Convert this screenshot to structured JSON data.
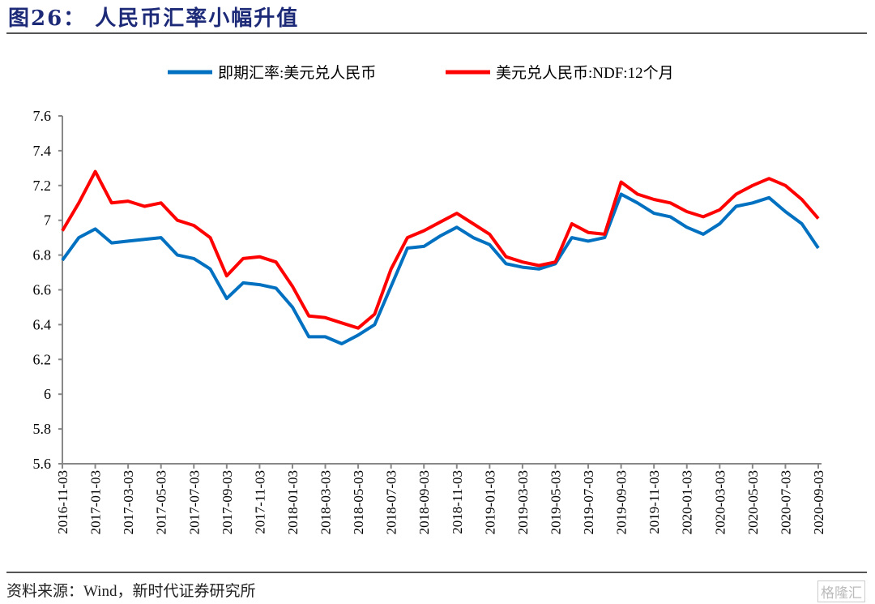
{
  "header": {
    "title": "图26：  人民币汇率小幅升值"
  },
  "footer": {
    "source": "资料来源：Wind，新时代证券研究所",
    "watermark": "格隆汇"
  },
  "chart_data": {
    "type": "line",
    "title": "图26：  人民币汇率小幅升值",
    "xlabel": "",
    "ylabel": "",
    "ylim": [
      5.6,
      7.6
    ],
    "yticks": [
      "7.6",
      "7.4",
      "7.2",
      "7",
      "6.8",
      "6.6",
      "6.4",
      "6.2",
      "6",
      "5.8",
      "5.6"
    ],
    "ytick_values": [
      7.6,
      7.4,
      7.2,
      7.0,
      6.8,
      6.6,
      6.4,
      6.2,
      6.0,
      5.8,
      5.6
    ],
    "xticks": [
      "2016-11-03",
      "2017-01-03",
      "2017-03-03",
      "2017-05-03",
      "2017-07-03",
      "2017-09-03",
      "2017-11-03",
      "2018-01-03",
      "2018-03-03",
      "2018-05-03",
      "2018-07-03",
      "2018-09-03",
      "2018-11-03",
      "2019-01-03",
      "2019-03-03",
      "2019-05-03",
      "2019-07-03",
      "2019-09-03",
      "2019-11-03",
      "2020-01-03",
      "2020-03-03",
      "2020-05-03",
      "2020-07-03",
      "2020-09-03"
    ],
    "grid": false,
    "legend_position": "top-center",
    "x": [
      "2016-11",
      "2016-12",
      "2017-01",
      "2017-02",
      "2017-03",
      "2017-04",
      "2017-05",
      "2017-06",
      "2017-07",
      "2017-08",
      "2017-09",
      "2017-10",
      "2017-11",
      "2017-12",
      "2018-01",
      "2018-02",
      "2018-03",
      "2018-04",
      "2018-05",
      "2018-06",
      "2018-07",
      "2018-08",
      "2018-09",
      "2018-10",
      "2018-11",
      "2018-12",
      "2019-01",
      "2019-02",
      "2019-03",
      "2019-04",
      "2019-05",
      "2019-06",
      "2019-07",
      "2019-08",
      "2019-09",
      "2019-10",
      "2019-11",
      "2019-12",
      "2020-01",
      "2020-02",
      "2020-03",
      "2020-04",
      "2020-05",
      "2020-06",
      "2020-07",
      "2020-08",
      "2020-09"
    ],
    "series": [
      {
        "name": "即期汇率:美元兑人民币",
        "color": "#0070c0",
        "values": [
          6.77,
          6.9,
          6.95,
          6.87,
          6.88,
          6.89,
          6.9,
          6.8,
          6.78,
          6.72,
          6.55,
          6.64,
          6.63,
          6.61,
          6.5,
          6.33,
          6.33,
          6.29,
          6.34,
          6.4,
          6.62,
          6.84,
          6.85,
          6.91,
          6.96,
          6.9,
          6.86,
          6.75,
          6.73,
          6.72,
          6.75,
          6.9,
          6.88,
          6.9,
          7.15,
          7.1,
          7.04,
          7.02,
          6.96,
          6.92,
          6.98,
          7.08,
          7.1,
          7.13,
          7.05,
          6.98,
          6.84
        ]
      },
      {
        "name": "美元兑人民币:NDF:12个月",
        "color": "#ff0000",
        "values": [
          6.94,
          7.1,
          7.28,
          7.1,
          7.11,
          7.08,
          7.1,
          7.0,
          6.97,
          6.9,
          6.68,
          6.78,
          6.79,
          6.76,
          6.62,
          6.45,
          6.44,
          6.41,
          6.38,
          6.46,
          6.72,
          6.9,
          6.94,
          6.99,
          7.04,
          6.98,
          6.92,
          6.79,
          6.76,
          6.74,
          6.76,
          6.98,
          6.93,
          6.92,
          7.22,
          7.15,
          7.12,
          7.1,
          7.05,
          7.02,
          7.06,
          7.15,
          7.2,
          7.24,
          7.2,
          7.12,
          7.01
        ]
      }
    ]
  }
}
